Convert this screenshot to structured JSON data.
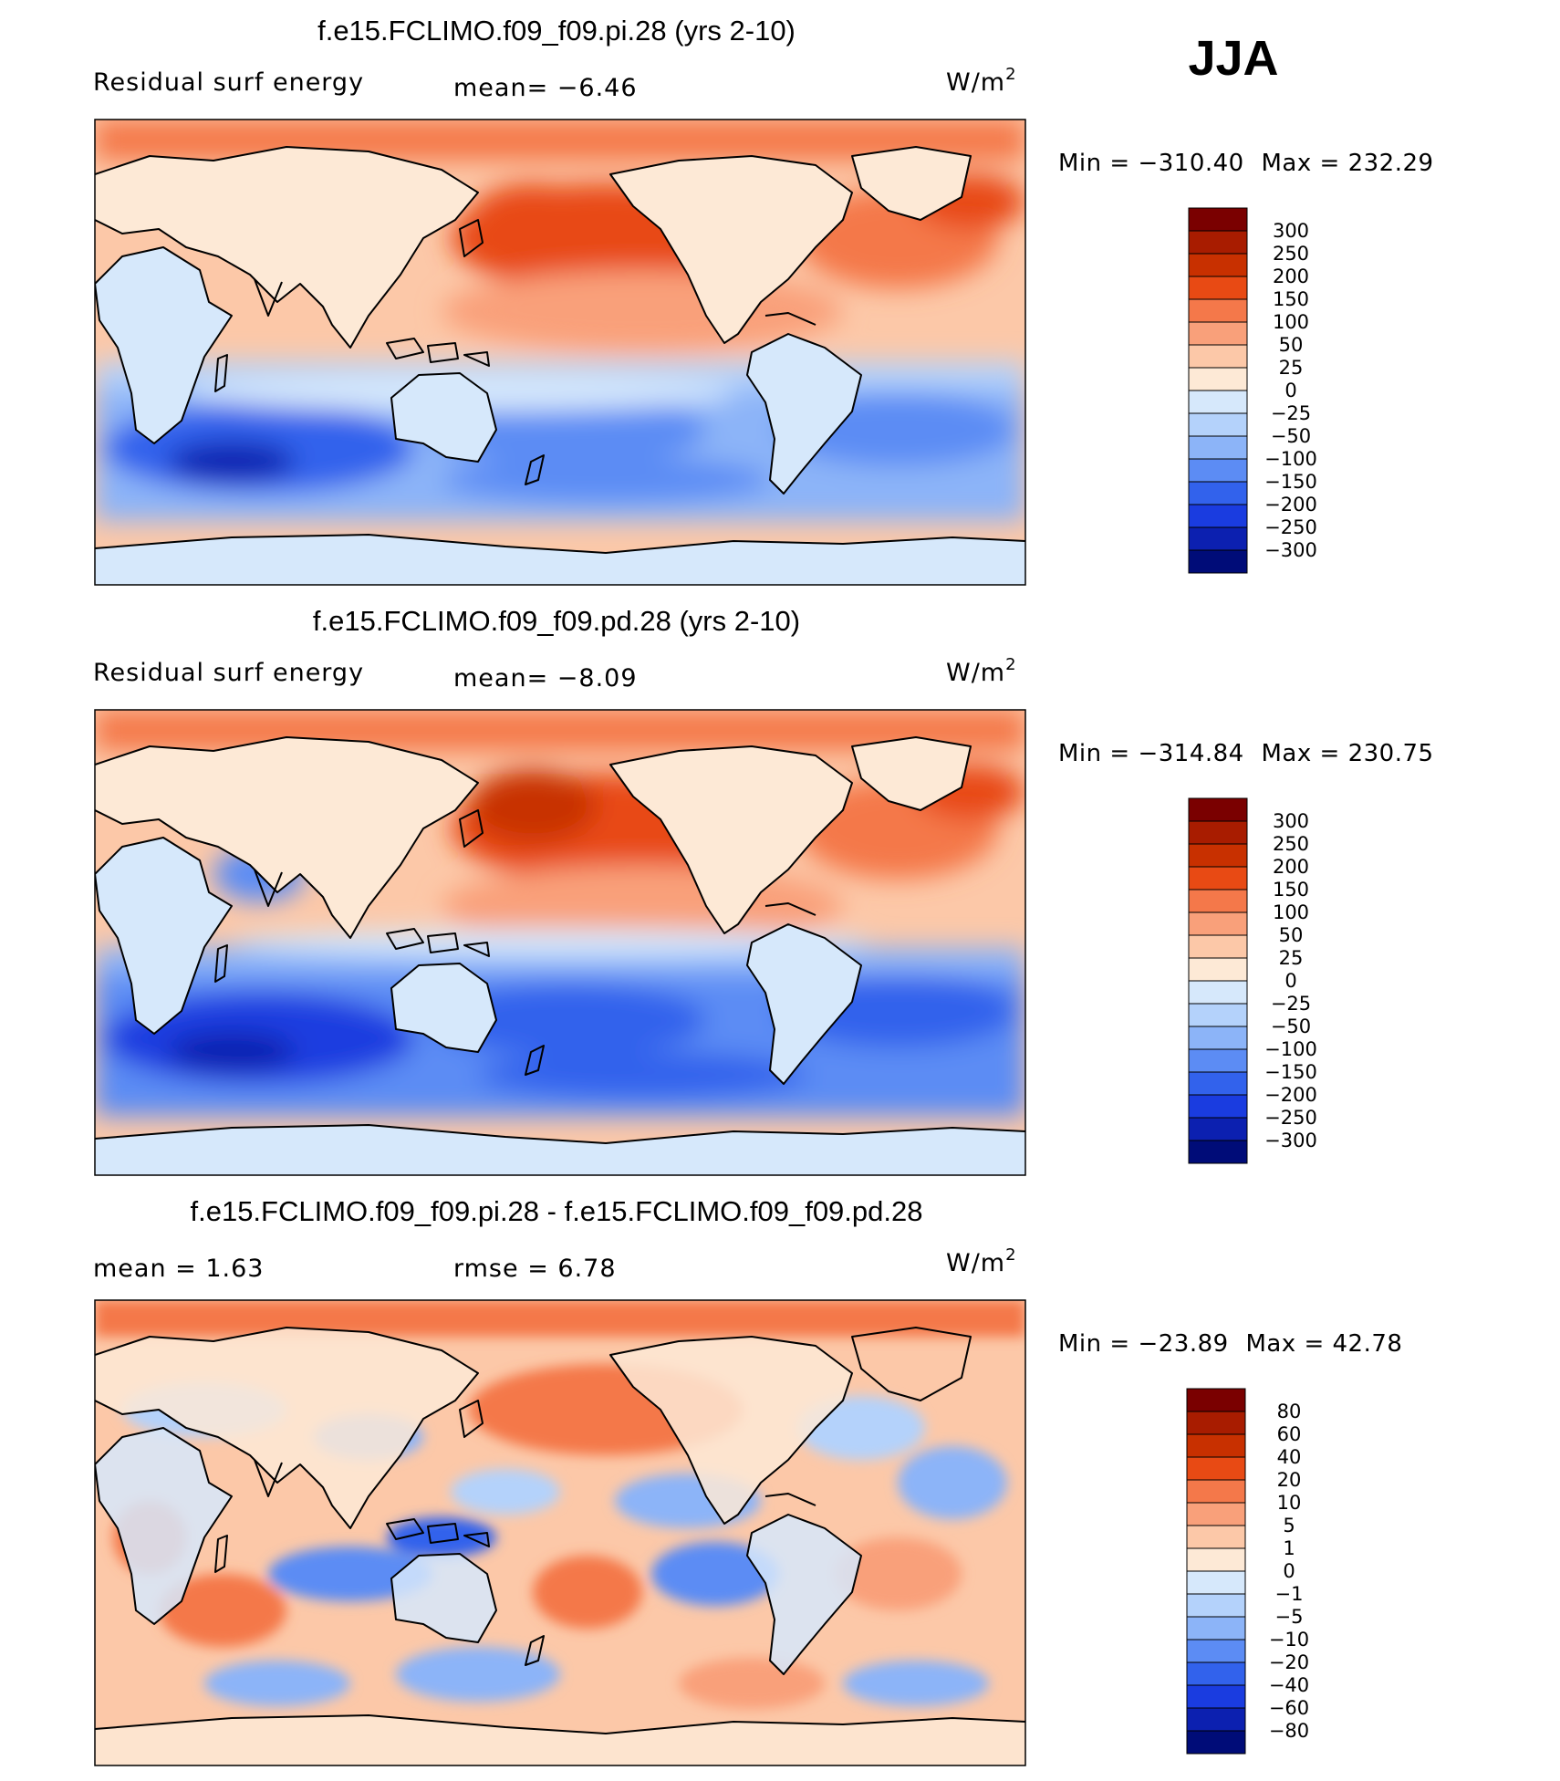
{
  "season": "JJA",
  "chart_data": [
    {
      "type": "heatmap",
      "title": "f.e15.FCLIMO.f09_f09.pi.28 (yrs 2-10)",
      "left_label": "Residual surf energy",
      "center_label": "mean=   −6.46",
      "units_label": "W/m",
      "units_sup": "2",
      "stat_min": "−310.40",
      "stat_max": "232.29",
      "min_label": "Min  =",
      "max_label": "Max  =",
      "mean": -6.46,
      "min": -310.4,
      "max": 232.29,
      "colorbar": {
        "levels": [
          "300",
          "250",
          "200",
          "150",
          "100",
          "50",
          "25",
          "0",
          "−25",
          "−50",
          "−100",
          "−150",
          "−200",
          "−250",
          "−300"
        ],
        "colors": [
          "#7a0000",
          "#a81c00",
          "#c83000",
          "#e84a14",
          "#f4784a",
          "#f9a07a",
          "#fcc8a8",
          "#fde9d6",
          "#d6e8fb",
          "#b4d2fb",
          "#8cb4f8",
          "#5c8cf4",
          "#3262ec",
          "#1a3ce0",
          "#0c20b0",
          "#000c78"
        ]
      }
    },
    {
      "type": "heatmap",
      "title": "f.e15.FCLIMO.f09_f09.pd.28 (yrs 2-10)",
      "left_label": "Residual surf energy",
      "center_label": "mean=   −8.09",
      "units_label": "W/m",
      "units_sup": "2",
      "stat_min": "−314.84",
      "stat_max": "230.75",
      "min_label": "Min  =",
      "max_label": "Max  =",
      "mean": -8.09,
      "min": -314.84,
      "max": 230.75,
      "colorbar": {
        "levels": [
          "300",
          "250",
          "200",
          "150",
          "100",
          "50",
          "25",
          "0",
          "−25",
          "−50",
          "−100",
          "−150",
          "−200",
          "−250",
          "−300"
        ],
        "colors": [
          "#7a0000",
          "#a81c00",
          "#c83000",
          "#e84a14",
          "#f4784a",
          "#f9a07a",
          "#fcc8a8",
          "#fde9d6",
          "#d6e8fb",
          "#b4d2fb",
          "#8cb4f8",
          "#5c8cf4",
          "#3262ec",
          "#1a3ce0",
          "#0c20b0",
          "#000c78"
        ]
      }
    },
    {
      "type": "heatmap",
      "title": "f.e15.FCLIMO.f09_f09.pi.28 - f.e15.FCLIMO.f09_f09.pd.28",
      "left_label": "mean  =     1.63",
      "center_label": "rmse  =     6.78",
      "units_label": "W/m",
      "units_sup": "2",
      "stat_min": "−23.89",
      "stat_max": "  42.78",
      "min_label": "Min  =",
      "max_label": "Max  =",
      "mean": 1.63,
      "rmse": 6.78,
      "min": -23.89,
      "max": 42.78,
      "colorbar": {
        "levels": [
          "80",
          "60",
          "40",
          "20",
          "10",
          "5",
          "1",
          "0",
          "−1",
          "−5",
          "−10",
          "−20",
          "−40",
          "−60",
          "−80"
        ],
        "colors": [
          "#7a0000",
          "#a81c00",
          "#c83000",
          "#e84a14",
          "#f4784a",
          "#f9a07a",
          "#fcc8a8",
          "#fde9d6",
          "#d6e8fb",
          "#b4d2fb",
          "#8cb4f8",
          "#5c8cf4",
          "#3262ec",
          "#1a3ce0",
          "#0c20b0",
          "#000c78"
        ]
      }
    }
  ]
}
